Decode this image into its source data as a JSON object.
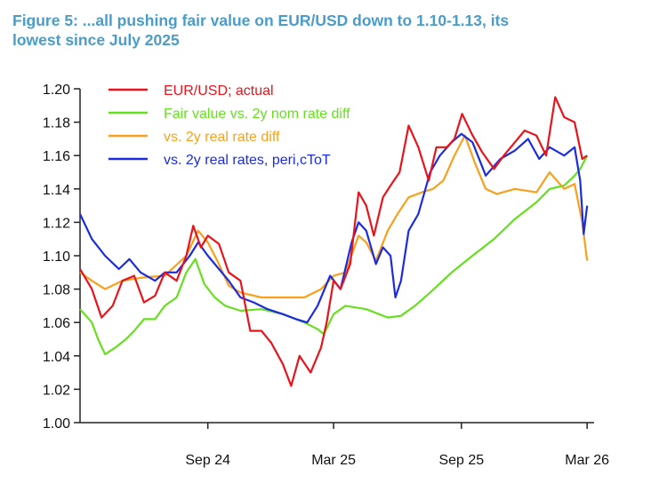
{
  "figure": {
    "title_line1": "Figure 5: ...all pushing fair value on EUR/USD down to 1.10-1.13, its",
    "title_line2": "lowest since July 2025"
  },
  "chart_data": {
    "type": "line",
    "ylim": [
      1.0,
      1.2
    ],
    "yticks": [
      "1.20",
      "1.18",
      "1.16",
      "1.14",
      "1.12",
      "1.10",
      "1.08",
      "1.06",
      "1.04",
      "1.02",
      "1.00"
    ],
    "xlim": [
      "2024-03-15",
      "2026-03-25"
    ],
    "xticks": [
      {
        "label": "Sep 24",
        "date": "2024-09-15"
      },
      {
        "label": "Mar 25",
        "date": "2025-03-15"
      },
      {
        "label": "Sep 25",
        "date": "2025-09-15"
      },
      {
        "label": "Mar 26",
        "date": "2026-03-15"
      }
    ],
    "legend_position": "top-left",
    "grid": false,
    "series": [
      {
        "name": "EUR/USD; actual",
        "color": "#e8141c",
        "points": [
          [
            "2024-03-15",
            1.092
          ],
          [
            "2024-04-01",
            1.08
          ],
          [
            "2024-04-15",
            1.063
          ],
          [
            "2024-05-01",
            1.07
          ],
          [
            "2024-05-15",
            1.085
          ],
          [
            "2024-06-01",
            1.088
          ],
          [
            "2024-06-15",
            1.072
          ],
          [
            "2024-07-01",
            1.076
          ],
          [
            "2024-07-15",
            1.09
          ],
          [
            "2024-08-01",
            1.085
          ],
          [
            "2024-08-15",
            1.1
          ],
          [
            "2024-08-25",
            1.118
          ],
          [
            "2024-09-05",
            1.105
          ],
          [
            "2024-09-15",
            1.112
          ],
          [
            "2024-10-01",
            1.107
          ],
          [
            "2024-10-15",
            1.09
          ],
          [
            "2024-11-01",
            1.085
          ],
          [
            "2024-11-15",
            1.055
          ],
          [
            "2024-12-01",
            1.055
          ],
          [
            "2024-12-15",
            1.048
          ],
          [
            "2025-01-01",
            1.035
          ],
          [
            "2025-01-13",
            1.022
          ],
          [
            "2025-01-25",
            1.04
          ],
          [
            "2025-02-10",
            1.03
          ],
          [
            "2025-02-25",
            1.045
          ],
          [
            "2025-03-05",
            1.06
          ],
          [
            "2025-03-15",
            1.085
          ],
          [
            "2025-03-25",
            1.08
          ],
          [
            "2025-04-08",
            1.095
          ],
          [
            "2025-04-20",
            1.138
          ],
          [
            "2025-05-01",
            1.13
          ],
          [
            "2025-05-12",
            1.112
          ],
          [
            "2025-05-25",
            1.135
          ],
          [
            "2025-06-05",
            1.142
          ],
          [
            "2025-06-18",
            1.15
          ],
          [
            "2025-07-01",
            1.178
          ],
          [
            "2025-07-15",
            1.165
          ],
          [
            "2025-07-30",
            1.145
          ],
          [
            "2025-08-10",
            1.165
          ],
          [
            "2025-08-25",
            1.165
          ],
          [
            "2025-09-05",
            1.17
          ],
          [
            "2025-09-16",
            1.185
          ],
          [
            "2025-09-30",
            1.173
          ],
          [
            "2025-10-15",
            1.162
          ],
          [
            "2025-11-01",
            1.152
          ],
          [
            "2025-11-15",
            1.16
          ],
          [
            "2025-12-01",
            1.168
          ],
          [
            "2025-12-15",
            1.175
          ],
          [
            "2026-01-01",
            1.172
          ],
          [
            "2026-01-15",
            1.16
          ],
          [
            "2026-01-28",
            1.195
          ],
          [
            "2026-02-10",
            1.183
          ],
          [
            "2026-02-25",
            1.18
          ],
          [
            "2026-03-08",
            1.158
          ],
          [
            "2026-03-15",
            1.16
          ]
        ]
      },
      {
        "name": "Fair value vs. 2y nom rate diff",
        "color": "#66e01e",
        "points": [
          [
            "2024-03-15",
            1.068
          ],
          [
            "2024-04-01",
            1.06
          ],
          [
            "2024-04-10",
            1.05
          ],
          [
            "2024-04-20",
            1.041
          ],
          [
            "2024-05-05",
            1.045
          ],
          [
            "2024-05-20",
            1.05
          ],
          [
            "2024-06-01",
            1.055
          ],
          [
            "2024-06-15",
            1.062
          ],
          [
            "2024-07-01",
            1.062
          ],
          [
            "2024-07-15",
            1.07
          ],
          [
            "2024-08-01",
            1.075
          ],
          [
            "2024-08-15",
            1.09
          ],
          [
            "2024-08-28",
            1.098
          ],
          [
            "2024-09-10",
            1.083
          ],
          [
            "2024-09-25",
            1.075
          ],
          [
            "2024-10-10",
            1.07
          ],
          [
            "2024-11-01",
            1.067
          ],
          [
            "2024-12-01",
            1.068
          ],
          [
            "2025-01-01",
            1.065
          ],
          [
            "2025-02-01",
            1.06
          ],
          [
            "2025-02-20",
            1.056
          ],
          [
            "2025-03-01",
            1.053
          ],
          [
            "2025-03-15",
            1.065
          ],
          [
            "2025-04-01",
            1.07
          ],
          [
            "2025-05-01",
            1.068
          ],
          [
            "2025-06-01",
            1.063
          ],
          [
            "2025-06-20",
            1.064
          ],
          [
            "2025-07-10",
            1.07
          ],
          [
            "2025-08-01",
            1.078
          ],
          [
            "2025-09-01",
            1.09
          ],
          [
            "2025-10-01",
            1.1
          ],
          [
            "2025-11-01",
            1.11
          ],
          [
            "2025-12-01",
            1.122
          ],
          [
            "2026-01-01",
            1.132
          ],
          [
            "2026-01-20",
            1.14
          ],
          [
            "2026-02-10",
            1.142
          ],
          [
            "2026-02-25",
            1.148
          ],
          [
            "2026-03-05",
            1.152
          ],
          [
            "2026-03-15",
            1.16
          ]
        ]
      },
      {
        "name": "vs. 2y real rate diff",
        "color": "#f9a01b",
        "points": [
          [
            "2024-03-15",
            1.09
          ],
          [
            "2024-04-01",
            1.085
          ],
          [
            "2024-04-20",
            1.08
          ],
          [
            "2024-05-15",
            1.085
          ],
          [
            "2024-06-15",
            1.087
          ],
          [
            "2024-07-15",
            1.088
          ],
          [
            "2024-08-15",
            1.1
          ],
          [
            "2024-09-01",
            1.115
          ],
          [
            "2024-09-15",
            1.108
          ],
          [
            "2024-10-01",
            1.095
          ],
          [
            "2024-10-15",
            1.082
          ],
          [
            "2024-11-01",
            1.078
          ],
          [
            "2024-12-01",
            1.075
          ],
          [
            "2025-01-01",
            1.075
          ],
          [
            "2025-02-01",
            1.075
          ],
          [
            "2025-02-25",
            1.08
          ],
          [
            "2025-03-15",
            1.088
          ],
          [
            "2025-04-01",
            1.09
          ],
          [
            "2025-04-20",
            1.112
          ],
          [
            "2025-05-01",
            1.108
          ],
          [
            "2025-05-15",
            1.097
          ],
          [
            "2025-06-01",
            1.115
          ],
          [
            "2025-06-15",
            1.125
          ],
          [
            "2025-07-01",
            1.135
          ],
          [
            "2025-07-20",
            1.138
          ],
          [
            "2025-08-05",
            1.14
          ],
          [
            "2025-08-20",
            1.145
          ],
          [
            "2025-09-05",
            1.16
          ],
          [
            "2025-09-20",
            1.172
          ],
          [
            "2025-10-05",
            1.155
          ],
          [
            "2025-10-20",
            1.14
          ],
          [
            "2025-11-05",
            1.137
          ],
          [
            "2025-12-01",
            1.14
          ],
          [
            "2026-01-01",
            1.138
          ],
          [
            "2026-01-20",
            1.15
          ],
          [
            "2026-02-10",
            1.14
          ],
          [
            "2026-02-25",
            1.143
          ],
          [
            "2026-03-08",
            1.12
          ],
          [
            "2026-03-15",
            1.097
          ]
        ]
      },
      {
        "name": "vs. 2y real rates, peri,cToT",
        "color": "#1b2ce0",
        "points": [
          [
            "2024-03-15",
            1.125
          ],
          [
            "2024-04-01",
            1.11
          ],
          [
            "2024-04-20",
            1.1
          ],
          [
            "2024-05-10",
            1.092
          ],
          [
            "2024-05-25",
            1.098
          ],
          [
            "2024-06-10",
            1.09
          ],
          [
            "2024-07-01",
            1.085
          ],
          [
            "2024-07-15",
            1.09
          ],
          [
            "2024-08-01",
            1.09
          ],
          [
            "2024-08-20",
            1.1
          ],
          [
            "2024-09-01",
            1.108
          ],
          [
            "2024-09-15",
            1.1
          ],
          [
            "2024-10-01",
            1.092
          ],
          [
            "2024-10-15",
            1.085
          ],
          [
            "2024-11-01",
            1.075
          ],
          [
            "2024-11-20",
            1.072
          ],
          [
            "2024-12-10",
            1.068
          ],
          [
            "2025-01-01",
            1.065
          ],
          [
            "2025-01-20",
            1.062
          ],
          [
            "2025-02-05",
            1.06
          ],
          [
            "2025-02-20",
            1.07
          ],
          [
            "2025-03-10",
            1.088
          ],
          [
            "2025-03-25",
            1.08
          ],
          [
            "2025-04-10",
            1.108
          ],
          [
            "2025-04-20",
            1.12
          ],
          [
            "2025-05-01",
            1.115
          ],
          [
            "2025-05-15",
            1.095
          ],
          [
            "2025-05-25",
            1.105
          ],
          [
            "2025-06-05",
            1.1
          ],
          [
            "2025-06-12",
            1.075
          ],
          [
            "2025-06-20",
            1.085
          ],
          [
            "2025-07-01",
            1.115
          ],
          [
            "2025-07-15",
            1.125
          ],
          [
            "2025-08-01",
            1.15
          ],
          [
            "2025-08-15",
            1.16
          ],
          [
            "2025-09-01",
            1.168
          ],
          [
            "2025-09-15",
            1.173
          ],
          [
            "2025-10-01",
            1.168
          ],
          [
            "2025-10-20",
            1.148
          ],
          [
            "2025-11-10",
            1.158
          ],
          [
            "2025-12-01",
            1.163
          ],
          [
            "2025-12-20",
            1.17
          ],
          [
            "2026-01-05",
            1.158
          ],
          [
            "2026-01-20",
            1.165
          ],
          [
            "2026-02-10",
            1.16
          ],
          [
            "2026-02-25",
            1.165
          ],
          [
            "2026-03-05",
            1.145
          ],
          [
            "2026-03-10",
            1.113
          ],
          [
            "2026-03-15",
            1.13
          ]
        ]
      }
    ]
  }
}
